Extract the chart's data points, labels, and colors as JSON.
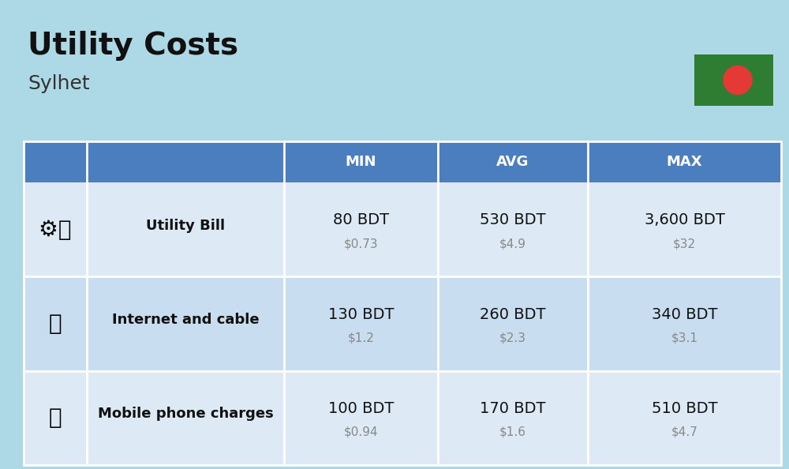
{
  "title": "Utility Costs",
  "subtitle": "Sylhet",
  "bg_color": "#add8e6",
  "header_bg": "#4a7ebf",
  "header_text_color": "#ffffff",
  "row_bg_odd": "#ddeaf5",
  "row_bg_even": "#c8ddf0",
  "cell_border_color": "#ffffff",
  "header_labels": [
    "MIN",
    "AVG",
    "MAX"
  ],
  "rows": [
    {
      "label": "Utility Bill",
      "min_bdt": "80 BDT",
      "min_usd": "$0.73",
      "avg_bdt": "530 BDT",
      "avg_usd": "$4.9",
      "max_bdt": "3,600 BDT",
      "max_usd": "$32"
    },
    {
      "label": "Internet and cable",
      "min_bdt": "130 BDT",
      "min_usd": "$1.2",
      "avg_bdt": "260 BDT",
      "avg_usd": "$2.3",
      "max_bdt": "340 BDT",
      "max_usd": "$3.1"
    },
    {
      "label": "Mobile phone charges",
      "min_bdt": "100 BDT",
      "min_usd": "$0.94",
      "avg_bdt": "170 BDT",
      "avg_usd": "$1.6",
      "max_bdt": "510 BDT",
      "max_usd": "$4.7"
    }
  ],
  "flag_green": "#2e7d32",
  "flag_red": "#e53935",
  "title_fontsize": 28,
  "subtitle_fontsize": 18,
  "header_fontsize": 13,
  "label_fontsize": 13,
  "value_fontsize": 14,
  "usd_fontsize": 11,
  "usd_color": "#888888"
}
